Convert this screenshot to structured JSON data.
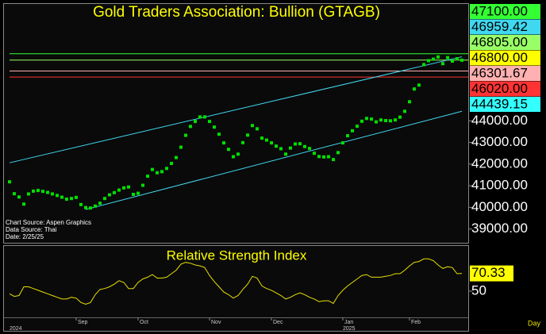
{
  "chart_data": [
    {
      "type": "dot",
      "title": "Gold Traders Association: Bullion (GTAGB)",
      "notes": [
        "Chart Source: Aspen Graphics",
        "Data Source: Thai",
        "Date: 2/25/25"
      ],
      "series": [
        {
          "color": "#00e000",
          "values": [
            41180,
            40630,
            40480,
            40150,
            40620,
            40750,
            40780,
            40740,
            40690,
            40620,
            40550,
            40470,
            40380,
            40410,
            40460,
            40130,
            39990,
            39970,
            40060,
            40190,
            40410,
            40580,
            40680,
            40800,
            40900,
            40940,
            40600,
            40650,
            41020,
            41440,
            41750,
            41600,
            41650,
            41800,
            42030,
            42300,
            42780,
            43330,
            43740,
            43970,
            44180,
            44180,
            43970,
            43710,
            43380,
            42980,
            42680,
            42340,
            42460,
            42990,
            43340,
            43780,
            43630,
            43200,
            43110,
            42980,
            42830,
            42710,
            42460,
            42740,
            42930,
            42940,
            42810,
            42720,
            42500,
            42350,
            42330,
            42340,
            42210,
            42530,
            42980,
            43310,
            43540,
            43750,
            43980,
            44110,
            44080,
            43950,
            44040,
            44010,
            44000,
            44040,
            44170,
            44440,
            44880,
            45470,
            45650,
            46600,
            46780,
            46850,
            46950,
            46640,
            46920,
            46760,
            46870,
            46800
          ]
        }
      ],
      "ylim": [
        38400,
        49400
      ],
      "yticks": [
        {
          "value": 39000,
          "label": "39000.00"
        },
        {
          "value": 40000,
          "label": "40000.00"
        },
        {
          "value": 41000,
          "label": "41000.00"
        },
        {
          "value": 42000,
          "label": "42000.00"
        },
        {
          "value": 43000,
          "label": "43000.00"
        },
        {
          "value": 44000,
          "label": "44000.00"
        }
      ],
      "trendlines": [
        {
          "color": "#40d8f0",
          "x": [
            0,
            95
          ],
          "values": [
            42060,
            46959.42
          ]
        },
        {
          "color": "#40d8f0",
          "x": [
            16,
            95
          ],
          "values": [
            39900,
            44439.15
          ]
        }
      ],
      "price_labels": [
        {
          "value": 47100,
          "label": "47100.00",
          "color": "#33ff33",
          "line": true
        },
        {
          "value": 46959.42,
          "label": "46959.42",
          "color": "#40d8f0",
          "line": false
        },
        {
          "value": 46805,
          "label": "46805.00",
          "color": "#99ff66",
          "line": true
        },
        {
          "value": 46800,
          "label": "46800.00",
          "color": "#ffff00",
          "line": false
        },
        {
          "value": 46301.67,
          "label": "46301.67",
          "color": "#ffb0b0",
          "line": true
        },
        {
          "value": 46020,
          "label": "46020.00",
          "color": "#ff3333",
          "line": true
        },
        {
          "value": 44439.15,
          "label": "44439.15",
          "color": "#33ffff",
          "line": false
        }
      ]
    },
    {
      "type": "line",
      "title": "Relative Strength Index",
      "categories": [
        null,
        null,
        null,
        null,
        null,
        null,
        null,
        null,
        null,
        null,
        null,
        null,
        null,
        null,
        "Sep",
        null,
        null,
        null,
        null,
        null,
        null,
        null,
        null,
        null,
        null,
        null,
        null,
        "Oct",
        null,
        null,
        null,
        null,
        null,
        null,
        null,
        null,
        null,
        null,
        null,
        null,
        null,
        null,
        "Nov",
        null,
        null,
        null,
        null,
        null,
        null,
        null,
        null,
        null,
        null,
        null,
        null,
        "Dec",
        null,
        null,
        null,
        null,
        null,
        null,
        null,
        null,
        null,
        null,
        null,
        null,
        null,
        null,
        "Jan",
        null,
        null,
        null,
        null,
        null,
        null,
        null,
        null,
        null,
        null,
        null,
        null,
        null,
        "Feb",
        null,
        null,
        null,
        null,
        null,
        null,
        null,
        null,
        null,
        null,
        null
      ],
      "years": [
        "2024",
        null,
        null,
        null,
        null,
        null,
        null,
        null,
        null,
        null,
        null,
        null,
        null,
        null,
        null,
        null,
        null,
        null,
        null,
        null,
        null,
        null,
        null,
        null,
        null,
        null,
        null,
        null,
        null,
        null,
        null,
        null,
        null,
        null,
        null,
        null,
        null,
        null,
        null,
        null,
        null,
        null,
        null,
        null,
        null,
        null,
        null,
        null,
        null,
        null,
        null,
        null,
        null,
        null,
        null,
        null,
        null,
        null,
        null,
        null,
        null,
        null,
        null,
        null,
        null,
        null,
        null,
        null,
        null,
        null,
        "2025",
        null,
        null,
        null,
        null,
        null,
        null,
        null,
        null,
        null,
        null,
        null,
        null,
        null,
        null,
        null,
        null,
        null,
        null,
        null,
        null,
        null,
        null,
        null,
        null,
        null
      ],
      "x_unit": "Day",
      "series": [
        {
          "color": "#e8e000",
          "values": [
            47,
            44,
            45,
            55,
            55,
            53,
            51,
            49,
            47,
            45,
            43,
            41,
            41,
            43,
            42,
            37,
            35,
            37,
            46,
            52,
            53,
            55,
            58,
            62,
            60,
            53,
            53,
            60,
            64,
            66,
            69,
            65,
            65,
            66,
            70,
            74,
            81,
            83,
            82,
            80,
            79,
            77,
            68,
            61,
            55,
            49,
            46,
            42,
            45,
            52,
            58,
            67,
            65,
            56,
            53,
            51,
            48,
            45,
            41,
            43,
            46,
            48,
            46,
            43,
            41,
            38,
            39,
            39,
            36,
            45,
            51,
            56,
            60,
            64,
            68,
            69,
            66,
            66,
            66,
            67,
            68,
            70,
            70,
            74,
            79,
            83,
            84,
            87,
            87,
            85,
            80,
            76,
            78,
            77,
            70,
            70.33
          ]
        }
      ],
      "last_value_label": true,
      "ylim": [
        20,
        100
      ],
      "yticks": [
        50
      ]
    }
  ]
}
